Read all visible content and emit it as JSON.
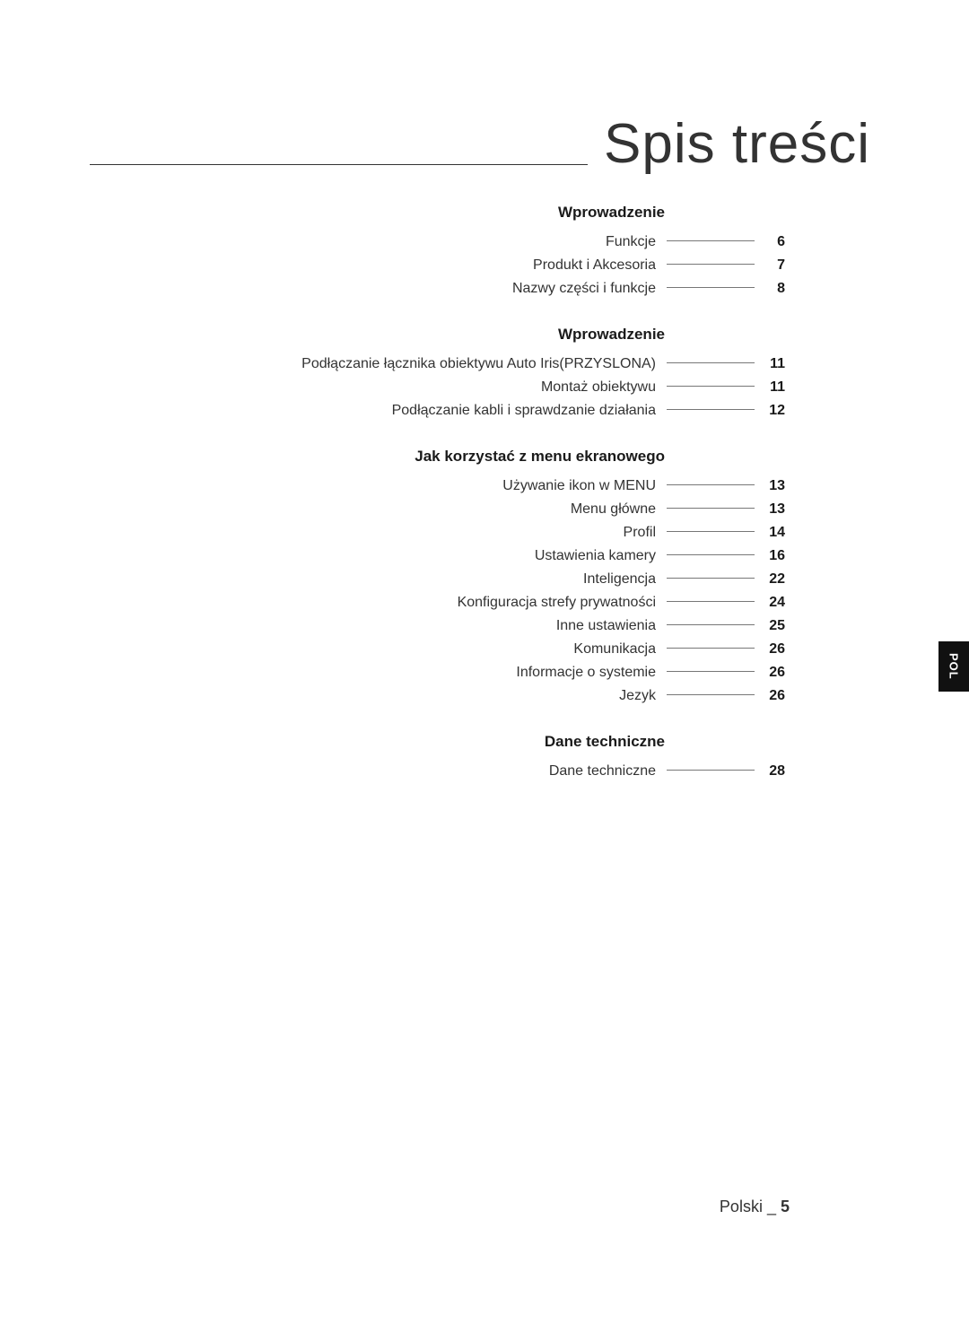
{
  "title": "Spis treści",
  "side_tab": "POL",
  "footer": {
    "lang": "Polski",
    "sep": "_",
    "page": "5"
  },
  "sections": [
    {
      "title": "Wprowadzenie",
      "items": [
        {
          "label": "Funkcje",
          "page": "6"
        },
        {
          "label": "Produkt i Akcesoria",
          "page": "7"
        },
        {
          "label": "Nazwy części i funkcje",
          "page": "8"
        }
      ]
    },
    {
      "title": "Wprowadzenie",
      "items": [
        {
          "label": "Podłączanie łącznika obiektywu Auto Iris(PRZYSLONA)",
          "page": "11"
        },
        {
          "label": "Montaż obiektywu",
          "page": "11"
        },
        {
          "label": "Podłączanie kabli i sprawdzanie działania",
          "page": "12"
        }
      ]
    },
    {
      "title": "Jak korzystać z menu ekranowego",
      "items": [
        {
          "label": "Używanie ikon w MENU",
          "page": "13"
        },
        {
          "label": "Menu główne",
          "page": "13"
        },
        {
          "label": "Profil",
          "page": "14"
        },
        {
          "label": "Ustawienia kamery",
          "page": "16"
        },
        {
          "label": "Inteligencja",
          "page": "22"
        },
        {
          "label": "Konfiguracja strefy prywatności",
          "page": "24"
        },
        {
          "label": "Inne ustawienia",
          "page": "25"
        },
        {
          "label": "Komunikacja",
          "page": "26"
        },
        {
          "label": "Informacje o systemie",
          "page": "26"
        },
        {
          "label": "Jezyk",
          "page": "26"
        }
      ]
    },
    {
      "title": "Dane techniczne",
      "items": [
        {
          "label": "Dane techniczne",
          "page": "28"
        }
      ]
    }
  ]
}
